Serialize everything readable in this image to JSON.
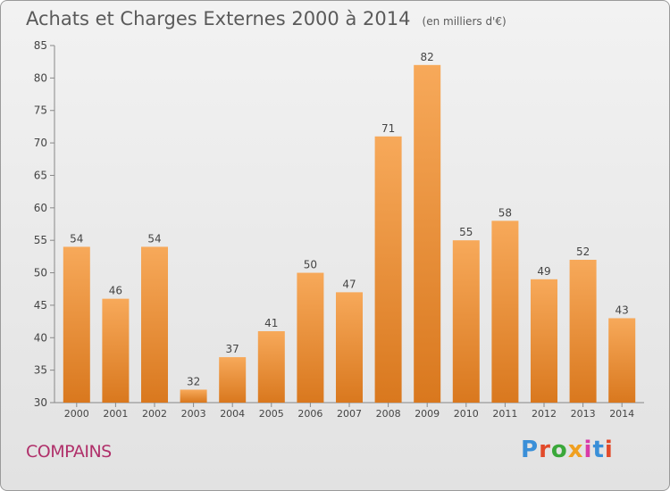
{
  "title": "Achats et Charges Externes 2000 à 2014",
  "subtitle": "(en milliers d'€)",
  "commune": "COMPAINS",
  "brand": "Proxiti",
  "colors": {
    "bar_light": "#f7a95a",
    "bar_dark": "#d9781e",
    "commune_text": "#b0306a",
    "brand_letters": [
      "#3a8fd8",
      "#e24a2a",
      "#3aa83a",
      "#f0a020",
      "#d93aa8",
      "#3a8fd8",
      "#e24a2a"
    ]
  },
  "chart_data": {
    "type": "bar",
    "title": "Achats et Charges Externes 2000 à 2014",
    "subtitle": "(en milliers d'€)",
    "categories": [
      "2000",
      "2001",
      "2002",
      "2003",
      "2004",
      "2005",
      "2006",
      "2007",
      "2008",
      "2009",
      "2010",
      "2011",
      "2012",
      "2013",
      "2014"
    ],
    "values": [
      54,
      46,
      54,
      32,
      37,
      41,
      50,
      47,
      71,
      82,
      55,
      58,
      49,
      52,
      43
    ],
    "ylim": [
      30,
      85
    ],
    "yticks": [
      30,
      35,
      40,
      45,
      50,
      55,
      60,
      65,
      70,
      75,
      80,
      85
    ],
    "grid": false,
    "legend": "none"
  }
}
